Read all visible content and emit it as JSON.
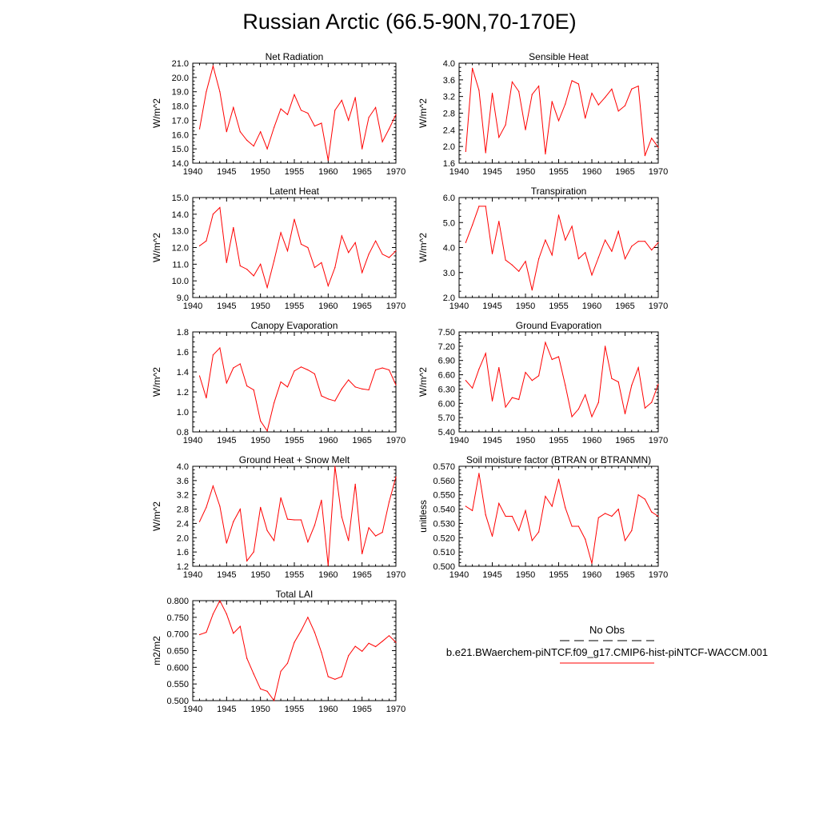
{
  "page": {
    "title": "Russian Arctic (66.5-90N,70-170E)"
  },
  "legend": {
    "entries": [
      {
        "name": "No Obs",
        "color": "#000000",
        "dashed": true
      },
      {
        "name": "b.e21.BWaerchem-piNTCF.f09_g17.CMIP6-hist-piNTCF-WACCM.001",
        "color": "#ff0000",
        "dashed": false
      }
    ]
  },
  "chart_data": [
    {
      "type": "line",
      "title": "Net Radiation",
      "ylabel": "W/m^2",
      "xlim": [
        1940,
        1970
      ],
      "xticks": [
        "1940",
        "1945",
        "1950",
        "1955",
        "1960",
        "1965",
        "1970"
      ],
      "ylim": [
        14.0,
        21.0
      ],
      "yticks": [
        "14.0",
        "15.0",
        "16.0",
        "17.0",
        "18.0",
        "19.0",
        "20.0",
        "21.0"
      ],
      "series": [
        {
          "color": "#ff0000",
          "x": [
            1941,
            1942,
            1943,
            1944,
            1945,
            1946,
            1947,
            1948,
            1949,
            1950,
            1951,
            1952,
            1953,
            1954,
            1955,
            1956,
            1957,
            1958,
            1959,
            1960,
            1961,
            1962,
            1963,
            1964,
            1965,
            1966,
            1967,
            1968,
            1969,
            1970
          ],
          "values": [
            16.4,
            19.0,
            20.8,
            19.0,
            16.2,
            17.9,
            16.2,
            15.6,
            15.2,
            16.2,
            15.0,
            16.5,
            17.8,
            17.4,
            18.8,
            17.7,
            17.5,
            16.6,
            16.8,
            14.2,
            17.7,
            18.4,
            17.0,
            18.6,
            15.0,
            17.2,
            17.9,
            15.5,
            16.4,
            17.4
          ]
        }
      ]
    },
    {
      "type": "line",
      "title": "Sensible Heat",
      "ylabel": "W/m^2",
      "xlim": [
        1940,
        1970
      ],
      "xticks": [
        "1940",
        "1945",
        "1950",
        "1955",
        "1960",
        "1965",
        "1970"
      ],
      "ylim": [
        1.6,
        4.0
      ],
      "yticks": [
        "1.6",
        "2.0",
        "2.4",
        "2.8",
        "3.2",
        "3.6",
        "4.0"
      ],
      "series": [
        {
          "color": "#ff0000",
          "x": [
            1941,
            1942,
            1943,
            1944,
            1945,
            1946,
            1947,
            1948,
            1949,
            1950,
            1951,
            1952,
            1953,
            1954,
            1955,
            1956,
            1957,
            1958,
            1959,
            1960,
            1961,
            1962,
            1963,
            1964,
            1965,
            1966,
            1967,
            1968,
            1969,
            1970
          ],
          "values": [
            1.88,
            3.88,
            3.35,
            1.85,
            3.28,
            2.22,
            2.52,
            3.55,
            3.32,
            2.4,
            3.25,
            3.45,
            1.82,
            3.08,
            2.62,
            3.02,
            3.58,
            3.5,
            2.68,
            3.28,
            3.0,
            3.18,
            3.38,
            2.85,
            2.98,
            3.38,
            3.45,
            1.78,
            2.2,
            1.98
          ]
        }
      ]
    },
    {
      "type": "line",
      "title": "Latent Heat",
      "ylabel": "W/m^2",
      "xlim": [
        1940,
        1970
      ],
      "xticks": [
        "1940",
        "1945",
        "1950",
        "1955",
        "1960",
        "1965",
        "1970"
      ],
      "ylim": [
        9.0,
        15.0
      ],
      "yticks": [
        "9.0",
        "10.0",
        "11.0",
        "12.0",
        "13.0",
        "14.0",
        "15.0"
      ],
      "series": [
        {
          "color": "#ff0000",
          "x": [
            1941,
            1942,
            1943,
            1944,
            1945,
            1946,
            1947,
            1948,
            1949,
            1950,
            1951,
            1952,
            1953,
            1954,
            1955,
            1956,
            1957,
            1958,
            1959,
            1960,
            1961,
            1962,
            1963,
            1964,
            1965,
            1966,
            1967,
            1968,
            1969,
            1970
          ],
          "values": [
            12.1,
            12.4,
            14.0,
            14.4,
            11.1,
            13.2,
            10.9,
            10.7,
            10.3,
            11.0,
            9.6,
            11.2,
            12.9,
            11.8,
            13.7,
            12.2,
            12.0,
            10.8,
            11.1,
            9.7,
            10.8,
            12.7,
            11.7,
            12.3,
            10.5,
            11.6,
            12.4,
            11.6,
            11.4,
            11.8
          ]
        }
      ]
    },
    {
      "type": "line",
      "title": "Transpiration",
      "ylabel": "W/m^2",
      "xlim": [
        1940,
        1970
      ],
      "xticks": [
        "1940",
        "1945",
        "1950",
        "1955",
        "1960",
        "1965",
        "1970"
      ],
      "ylim": [
        2.0,
        6.0
      ],
      "yticks": [
        "2.0",
        "3.0",
        "4.0",
        "5.0",
        "6.0"
      ],
      "series": [
        {
          "color": "#ff0000",
          "x": [
            1941,
            1942,
            1943,
            1944,
            1945,
            1946,
            1947,
            1948,
            1949,
            1950,
            1951,
            1952,
            1953,
            1954,
            1955,
            1956,
            1957,
            1958,
            1959,
            1960,
            1961,
            1962,
            1963,
            1964,
            1965,
            1966,
            1967,
            1968,
            1969,
            1970
          ],
          "values": [
            4.2,
            4.9,
            5.65,
            5.65,
            3.75,
            5.05,
            3.5,
            3.3,
            3.05,
            3.45,
            2.3,
            3.55,
            4.3,
            3.7,
            5.3,
            4.3,
            4.85,
            3.55,
            3.8,
            2.9,
            3.6,
            4.3,
            3.85,
            4.65,
            3.55,
            4.05,
            4.25,
            4.25,
            3.9,
            4.2
          ]
        }
      ]
    },
    {
      "type": "line",
      "title": "Canopy Evaporation",
      "ylabel": "W/m^2",
      "xlim": [
        1940,
        1970
      ],
      "xticks": [
        "1940",
        "1945",
        "1950",
        "1955",
        "1960",
        "1965",
        "1970"
      ],
      "ylim": [
        0.8,
        1.8
      ],
      "yticks": [
        "0.8",
        "1.0",
        "1.2",
        "1.4",
        "1.6",
        "1.8"
      ],
      "series": [
        {
          "color": "#ff0000",
          "x": [
            1941,
            1942,
            1943,
            1944,
            1945,
            1946,
            1947,
            1948,
            1949,
            1950,
            1951,
            1952,
            1953,
            1954,
            1955,
            1956,
            1957,
            1958,
            1959,
            1960,
            1961,
            1962,
            1963,
            1964,
            1965,
            1966,
            1967,
            1968,
            1969,
            1970
          ],
          "values": [
            1.36,
            1.14,
            1.57,
            1.64,
            1.29,
            1.44,
            1.48,
            1.26,
            1.22,
            0.91,
            0.81,
            1.09,
            1.3,
            1.25,
            1.41,
            1.45,
            1.42,
            1.38,
            1.16,
            1.13,
            1.11,
            1.23,
            1.32,
            1.25,
            1.23,
            1.22,
            1.42,
            1.44,
            1.42,
            1.27
          ]
        }
      ]
    },
    {
      "type": "line",
      "title": "Ground Evaporation",
      "ylabel": "W/m^2",
      "xlim": [
        1940,
        1970
      ],
      "xticks": [
        "1940",
        "1945",
        "1950",
        "1955",
        "1960",
        "1965",
        "1970"
      ],
      "ylim": [
        5.4,
        7.5
      ],
      "yticks": [
        "5.40",
        "5.70",
        "6.00",
        "6.30",
        "6.60",
        "6.90",
        "7.20",
        "7.50"
      ],
      "series": [
        {
          "color": "#ff0000",
          "x": [
            1941,
            1942,
            1943,
            1944,
            1945,
            1946,
            1947,
            1948,
            1949,
            1950,
            1951,
            1952,
            1953,
            1954,
            1955,
            1956,
            1957,
            1958,
            1959,
            1960,
            1961,
            1962,
            1963,
            1964,
            1965,
            1966,
            1967,
            1968,
            1969,
            1970
          ],
          "values": [
            6.48,
            6.32,
            6.72,
            7.05,
            6.05,
            6.75,
            5.92,
            6.12,
            6.08,
            6.65,
            6.48,
            6.58,
            7.28,
            6.92,
            6.98,
            6.38,
            5.72,
            5.88,
            6.18,
            5.72,
            6.02,
            7.2,
            6.52,
            6.45,
            5.78,
            6.38,
            6.75,
            5.9,
            6.02,
            6.4
          ]
        }
      ]
    },
    {
      "type": "line",
      "title": "Ground Heat + Snow Melt",
      "ylabel": "W/m^2",
      "xlim": [
        1940,
        1970
      ],
      "xticks": [
        "1940",
        "1945",
        "1950",
        "1955",
        "1960",
        "1965",
        "1970"
      ],
      "ylim": [
        1.2,
        4.0
      ],
      "yticks": [
        "1.2",
        "1.6",
        "2.0",
        "2.4",
        "2.8",
        "3.2",
        "3.6",
        "4.0"
      ],
      "series": [
        {
          "color": "#ff0000",
          "x": [
            1941,
            1942,
            1943,
            1944,
            1945,
            1946,
            1947,
            1948,
            1949,
            1950,
            1951,
            1952,
            1953,
            1954,
            1955,
            1956,
            1957,
            1958,
            1959,
            1960,
            1961,
            1962,
            1963,
            1964,
            1965,
            1966,
            1967,
            1968,
            1969,
            1970
          ],
          "values": [
            2.45,
            2.85,
            3.45,
            2.88,
            1.85,
            2.45,
            2.8,
            1.35,
            1.6,
            2.85,
            2.2,
            1.92,
            3.12,
            2.52,
            2.5,
            2.5,
            1.88,
            2.35,
            3.05,
            1.22,
            4.0,
            2.58,
            1.92,
            3.5,
            1.55,
            2.28,
            2.05,
            2.15,
            3.0,
            3.7
          ]
        }
      ]
    },
    {
      "type": "line",
      "title": "Soil moisture factor (BTRAN or BTRANMN)",
      "ylabel": "unitless",
      "xlim": [
        1940,
        1970
      ],
      "xticks": [
        "1940",
        "1945",
        "1950",
        "1955",
        "1960",
        "1965",
        "1970"
      ],
      "ylim": [
        0.5,
        0.57
      ],
      "yticks": [
        "0.500",
        "0.510",
        "0.520",
        "0.530",
        "0.540",
        "0.550",
        "0.560",
        "0.570"
      ],
      "series": [
        {
          "color": "#ff0000",
          "x": [
            1941,
            1942,
            1943,
            1944,
            1945,
            1946,
            1947,
            1948,
            1949,
            1950,
            1951,
            1952,
            1953,
            1954,
            1955,
            1956,
            1957,
            1958,
            1959,
            1960,
            1961,
            1962,
            1963,
            1964,
            1965,
            1966,
            1967,
            1968,
            1969,
            1970
          ],
          "values": [
            0.542,
            0.539,
            0.565,
            0.536,
            0.521,
            0.544,
            0.535,
            0.535,
            0.525,
            0.539,
            0.518,
            0.524,
            0.549,
            0.542,
            0.561,
            0.541,
            0.528,
            0.528,
            0.519,
            0.502,
            0.534,
            0.537,
            0.535,
            0.54,
            0.518,
            0.525,
            0.55,
            0.547,
            0.538,
            0.535
          ]
        }
      ]
    },
    {
      "type": "line",
      "title": "Total LAI",
      "ylabel": "m2/m2",
      "xlim": [
        1940,
        1970
      ],
      "xticks": [
        "1940",
        "1945",
        "1950",
        "1955",
        "1960",
        "1965",
        "1970"
      ],
      "ylim": [
        0.5,
        0.8
      ],
      "yticks": [
        "0.500",
        "0.550",
        "0.600",
        "0.650",
        "0.700",
        "0.750",
        "0.800"
      ],
      "series": [
        {
          "color": "#ff0000",
          "x": [
            1941,
            1942,
            1943,
            1944,
            1945,
            1946,
            1947,
            1948,
            1949,
            1950,
            1951,
            1952,
            1953,
            1954,
            1955,
            1956,
            1957,
            1958,
            1959,
            1960,
            1961,
            1962,
            1963,
            1964,
            1965,
            1966,
            1967,
            1968,
            1969,
            1970
          ],
          "values": [
            0.698,
            0.705,
            0.76,
            0.8,
            0.76,
            0.702,
            0.723,
            0.627,
            0.58,
            0.535,
            0.528,
            0.5,
            0.588,
            0.612,
            0.675,
            0.71,
            0.75,
            0.705,
            0.645,
            0.572,
            0.564,
            0.572,
            0.635,
            0.663,
            0.648,
            0.672,
            0.662,
            0.678,
            0.695,
            0.675
          ]
        }
      ]
    }
  ]
}
